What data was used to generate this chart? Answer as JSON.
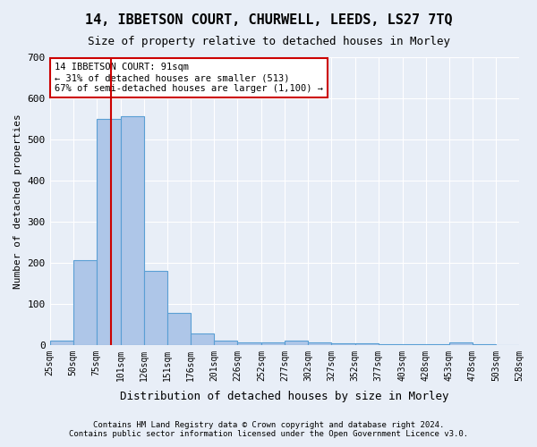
{
  "title": "14, IBBETSON COURT, CHURWELL, LEEDS, LS27 7TQ",
  "subtitle": "Size of property relative to detached houses in Morley",
  "xlabel": "Distribution of detached houses by size in Morley",
  "ylabel": "Number of detached properties",
  "footer_line1": "Contains HM Land Registry data © Crown copyright and database right 2024.",
  "footer_line2": "Contains public sector information licensed under the Open Government Licence v3.0.",
  "annotation_line1": "14 IBBETSON COURT: 91sqm",
  "annotation_line2": "← 31% of detached houses are smaller (513)",
  "annotation_line3": "67% of semi-detached houses are larger (1,100) →",
  "bar_edges": [
    25,
    50,
    75,
    101,
    126,
    151,
    176,
    201,
    226,
    252,
    277,
    302,
    327,
    352,
    377,
    403,
    428,
    453,
    478,
    503,
    528
  ],
  "bar_heights": [
    10,
    207,
    550,
    556,
    180,
    78,
    28,
    10,
    7,
    5,
    10,
    7,
    3,
    3,
    2,
    2,
    2,
    5,
    2,
    0
  ],
  "bar_color": "#aec6e8",
  "bar_edge_color": "#5a9fd4",
  "reference_line_x": 91,
  "reference_line_color": "#cc0000",
  "ylim": [
    0,
    700
  ],
  "yticks": [
    0,
    100,
    200,
    300,
    400,
    500,
    600,
    700
  ],
  "background_color": "#e8eef7",
  "grid_color": "#ffffff",
  "annotation_box_color": "#ffffff",
  "annotation_box_edge_color": "#cc0000"
}
